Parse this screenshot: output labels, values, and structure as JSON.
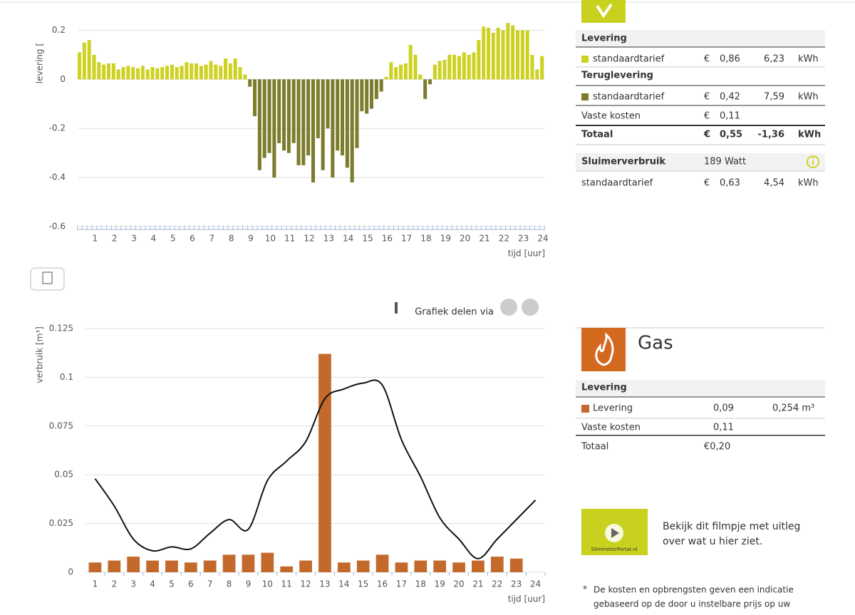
{
  "chart_data": [
    {
      "type": "bar",
      "ylabel": "levering [",
      "xlabel": "tijd [uur]",
      "ylim": [
        -0.6,
        0.3
      ],
      "yticks": [
        0.2,
        0,
        -0.2,
        -0.4,
        -0.6
      ],
      "xlim": [
        0,
        24
      ],
      "xticks": [
        1,
        2,
        3,
        4,
        5,
        6,
        7,
        8,
        9,
        10,
        11,
        12,
        13,
        14,
        15,
        16,
        17,
        18,
        19,
        20,
        21,
        22,
        23,
        24
      ],
      "color": "#cdd222",
      "negative_color": "#7c7c2c",
      "grid": true,
      "values": [
        0.11,
        0.15,
        0.16,
        0.1,
        0.07,
        0.06,
        0.065,
        0.065,
        0.04,
        0.05,
        0.055,
        0.05,
        0.045,
        0.055,
        0.04,
        0.05,
        0.045,
        0.05,
        0.055,
        0.06,
        0.05,
        0.055,
        0.07,
        0.065,
        0.065,
        0.055,
        0.06,
        0.075,
        0.06,
        0.055,
        0.085,
        0.065,
        0.085,
        0.05,
        0.02,
        -0.03,
        -0.15,
        -0.37,
        -0.32,
        -0.3,
        -0.4,
        -0.26,
        -0.29,
        -0.3,
        -0.26,
        -0.35,
        -0.35,
        -0.31,
        -0.42,
        -0.24,
        -0.37,
        -0.2,
        -0.4,
        -0.29,
        -0.31,
        -0.36,
        -0.42,
        -0.28,
        -0.13,
        -0.14,
        -0.12,
        -0.08,
        -0.05,
        0.01,
        0.07,
        0.05,
        0.06,
        0.065,
        0.14,
        0.1,
        0.02,
        -0.08,
        -0.02,
        0.06,
        0.075,
        0.08,
        0.1,
        0.1,
        0.095,
        0.11,
        0.1,
        0.11,
        0.16,
        0.215,
        0.21,
        0.19,
        0.21,
        0.2,
        0.23,
        0.22,
        0.2,
        0.2,
        0.2,
        0.1,
        0.04,
        0.095
      ]
    },
    {
      "type": "combo",
      "ylabel": "verbruik [m³]",
      "xlabel": "tijd [uur]",
      "ylim": [
        0,
        0.125
      ],
      "yticks": [
        0,
        0.025,
        0.05,
        0.075,
        0.1,
        0.125
      ],
      "grid": true,
      "categories": [
        "1",
        "2",
        "3",
        "4",
        "5",
        "6",
        "7",
        "8",
        "9",
        "10",
        "11",
        "12",
        "13",
        "14",
        "15",
        "16",
        "17",
        "18",
        "19",
        "20",
        "21",
        "22",
        "23",
        "24"
      ],
      "series": [
        {
          "type": "bar",
          "color": "#c4692c",
          "values": [
            0.005,
            0.006,
            0.008,
            0.006,
            0.006,
            0.005,
            0.006,
            0.009,
            0.009,
            0.01,
            0.003,
            0.006,
            0.112,
            0.005,
            0.006,
            0.009,
            0.005,
            0.006,
            0.006,
            0.005,
            0.006,
            0.008,
            0.007,
            null
          ]
        },
        {
          "type": "line",
          "color": "#111111",
          "values": [
            0.048,
            0.034,
            0.017,
            0.011,
            0.013,
            0.012,
            0.02,
            0.027,
            0.022,
            0.047,
            0.057,
            0.067,
            0.089,
            0.094,
            0.097,
            0.096,
            0.068,
            0.049,
            0.028,
            0.017,
            0.007,
            0.017,
            0.027,
            0.037
          ]
        }
      ]
    }
  ],
  "electricity": {
    "header_levering": "Levering",
    "levering": [
      "standaardtarief",
      "€",
      "0,86",
      "6,23",
      "kWh"
    ],
    "header_teruglevering": "Teruglevering",
    "teruglevering": [
      "standaardtarief",
      "€",
      "0,42",
      "7,59",
      "kWh"
    ],
    "fixed": [
      "Vaste kosten",
      "€",
      "0,11"
    ],
    "total": [
      "Totaal",
      "€",
      "0,55",
      "-1,36",
      "kWh"
    ],
    "standby_header": [
      "Sluimerverbruik",
      "189 Watt"
    ],
    "standby": [
      "standaardtarief",
      "€",
      "0,63",
      "4,54",
      "kWh"
    ]
  },
  "gas": {
    "title": "Gas",
    "header": "Levering",
    "levering": [
      "Levering",
      "0,09",
      "0,254 m³"
    ],
    "fixed": [
      "Vaste kosten",
      "0,11"
    ],
    "total": [
      "Totaal",
      "€0,20"
    ]
  },
  "share": {
    "label": "Grafiek delen via"
  },
  "video": {
    "thumb_label": "SlimmeterPortal.nl",
    "text": [
      "Bekijk dit filmpje met uitleg",
      "over wat u hier ziet."
    ]
  },
  "footnote": {
    "marker": "*",
    "lines": [
      "De kosten en opbrengsten geven een indicatie",
      "gebaseerd op de door u instelbare prijs op uw"
    ]
  }
}
